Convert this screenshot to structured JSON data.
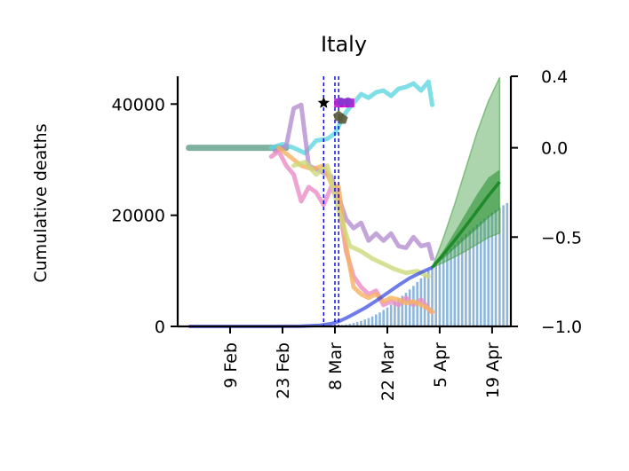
{
  "chart_data": {
    "type": "line",
    "title": "Italy",
    "ylabel": "Cumulative deaths",
    "ylabel_right": "",
    "x_ticks": [
      "9 Feb",
      "23 Feb",
      "8 Mar",
      "22 Mar",
      "5 Apr",
      "19 Apr"
    ],
    "x_tick_days": [
      9,
      23,
      37,
      51,
      65,
      79
    ],
    "xlim_days": [
      -5,
      84
    ],
    "y_left": {
      "ticks": [
        0,
        20000,
        40000
      ],
      "labels": [
        "0",
        "20000",
        "40000"
      ],
      "lim": [
        0,
        45000
      ]
    },
    "y_right": {
      "ticks": [
        -1.0,
        -0.5,
        0.0,
        0.4
      ],
      "labels": [
        "−1.0",
        "−0.5",
        "0.0",
        "0.4"
      ],
      "lim": [
        -1.0,
        0.4
      ]
    },
    "x_unit": "days since 1 Feb",
    "grid": false,
    "legend": "none",
    "colors": {
      "deaths_bars": "#6a9fcf",
      "blue_fit": "#2f45e0",
      "projection_band": "#4aa14a",
      "projection_median": "#1f8a2a",
      "cyan_series": "#5fd6e0",
      "purple_series": "#b48fd0",
      "pink_series": "#ea8cc6",
      "orange_series": "#f7b160",
      "olive_series": "#cdd97a",
      "dashed_lines": "#0000ee",
      "flat_series": "#5f9e8a"
    },
    "interventions_days": [
      34,
      37,
      38
    ],
    "deaths_observed": {
      "start_day": 37,
      "values": [
        100,
        150,
        250,
        350,
        450,
        600,
        800,
        1000,
        1250,
        1500,
        1800,
        2150,
        2500,
        2950,
        3400,
        3950,
        4450,
        5000,
        5500,
        6050,
        6650,
        7300,
        8000,
        8650,
        9300,
        10000,
        10700,
        11400,
        12050,
        12700,
        13350,
        14000,
        14700,
        15400,
        16000,
        16650,
        17250,
        17800,
        18350,
        18900,
        19400,
        19900,
        20450,
        20900,
        21350,
        21800,
        22200
      ]
    },
    "blue_fit": {
      "x": [
        -2,
        10,
        20,
        28,
        33,
        36,
        38,
        40,
        42,
        45,
        48,
        51,
        54,
        57,
        60,
        63
      ],
      "y": [
        0,
        0,
        0,
        50,
        200,
        500,
        900,
        1500,
        2200,
        3300,
        4600,
        6000,
        7400,
        8700,
        9700,
        10600
      ]
    },
    "projection": {
      "x": [
        63,
        66,
        69,
        72,
        75,
        78,
        81
      ],
      "median": [
        10600,
        13000,
        15500,
        18100,
        20800,
        23500,
        26000
      ],
      "inner_low": [
        10600,
        12200,
        14000,
        15800,
        17600,
        19500,
        21000
      ],
      "inner_high": [
        10600,
        13700,
        17000,
        20400,
        23800,
        26800,
        28200
      ],
      "outer_low": [
        10600,
        11500,
        12500,
        13600,
        14800,
        16000,
        16800
      ],
      "outer_high": [
        10600,
        16000,
        22000,
        28500,
        35000,
        40500,
        44800
      ]
    },
    "right_axis_series": [
      {
        "key": "flat",
        "x": [
          -2,
          12,
          18,
          24
        ],
        "y": [
          0.0,
          0.0,
          0.0,
          0.0
        ]
      },
      {
        "key": "cyan",
        "x": [
          20,
          23,
          26,
          29,
          32,
          35,
          37,
          38,
          40,
          42,
          44,
          46,
          48,
          50,
          52,
          54,
          56,
          58,
          60,
          62,
          63
        ],
        "y": [
          0.0,
          0.02,
          0.0,
          -0.03,
          0.04,
          0.05,
          0.08,
          0.12,
          0.2,
          0.25,
          0.3,
          0.28,
          0.31,
          0.32,
          0.29,
          0.33,
          0.34,
          0.36,
          0.32,
          0.37,
          0.24
        ]
      },
      {
        "key": "purple",
        "x": [
          21,
          24,
          26,
          28,
          30,
          32,
          34,
          36,
          38,
          40,
          42,
          44,
          46,
          48,
          50,
          52,
          54,
          56,
          58,
          60,
          62,
          63
        ],
        "y": [
          -0.02,
          0.01,
          0.22,
          0.24,
          -0.1,
          -0.12,
          -0.14,
          -0.16,
          -0.28,
          -0.4,
          -0.45,
          -0.42,
          -0.52,
          -0.48,
          -0.52,
          -0.48,
          -0.55,
          -0.56,
          -0.5,
          -0.55,
          -0.54,
          -0.62
        ]
      },
      {
        "key": "pink",
        "x": [
          20,
          22,
          24,
          26,
          28,
          30,
          32,
          34,
          36,
          38,
          40,
          42,
          44,
          46,
          48,
          50,
          52,
          54,
          56,
          58,
          60,
          62,
          63
        ],
        "y": [
          -0.05,
          -0.02,
          -0.1,
          -0.15,
          -0.3,
          -0.22,
          -0.25,
          -0.32,
          -0.22,
          -0.3,
          -0.58,
          -0.72,
          -0.78,
          -0.82,
          -0.8,
          -0.88,
          -0.86,
          -0.88,
          -0.84,
          -0.88,
          -0.85,
          -0.9,
          -0.92
        ]
      },
      {
        "key": "orange",
        "x": [
          22,
          25,
          28,
          31,
          34,
          36,
          38,
          40,
          42,
          44,
          46,
          48,
          50,
          52,
          54,
          56,
          58,
          60,
          62,
          63
        ],
        "y": [
          0.0,
          -0.05,
          -0.1,
          -0.12,
          -0.1,
          -0.2,
          -0.22,
          -0.55,
          -0.78,
          -0.82,
          -0.84,
          -0.82,
          -0.86,
          -0.84,
          -0.85,
          -0.87,
          -0.86,
          -0.88,
          -0.9,
          -0.92
        ]
      },
      {
        "key": "olive",
        "x": [
          26,
          29,
          32,
          35,
          38,
          41,
          44,
          47,
          50,
          53,
          56,
          59,
          62
        ],
        "y": [
          -0.1,
          -0.08,
          -0.15,
          -0.1,
          -0.35,
          -0.55,
          -0.58,
          -0.62,
          -0.65,
          -0.68,
          -0.7,
          -0.69,
          -0.72
        ]
      }
    ],
    "markers": [
      {
        "key": "star",
        "x": 34,
        "y": 40200
      },
      {
        "key": "magenta-1",
        "x": 38,
        "y": 40200
      },
      {
        "key": "magenta-2",
        "x": 39.5,
        "y": 40200
      },
      {
        "key": "magenta-3",
        "x": 41,
        "y": 40200
      },
      {
        "key": "purple-1",
        "x": 38.5,
        "y": 40400
      },
      {
        "key": "purple-2",
        "x": 40.5,
        "y": 40400
      },
      {
        "key": "pentagon-1",
        "x": 38,
        "y": 37800
      },
      {
        "key": "pentagon-2",
        "x": 39,
        "y": 37300
      }
    ]
  }
}
